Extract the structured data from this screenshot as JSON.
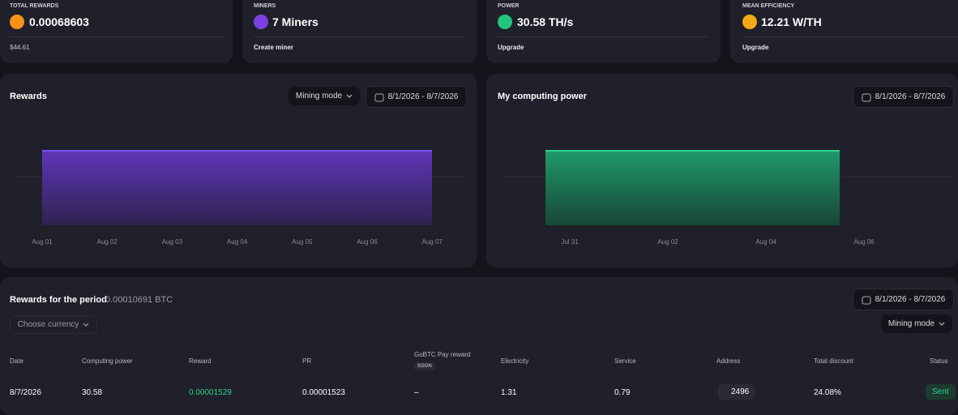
{
  "cards": [
    {
      "label": "TOTAL REWARDS",
      "value": "0.00068603",
      "footer": "$44.61"
    },
    {
      "label": "MINERS",
      "value": "7 Miners",
      "footer": "Create miner"
    },
    {
      "label": "POWER",
      "value": "30.58 TH/s",
      "footer": "Upgrade"
    },
    {
      "label": "MEAN EFFICIENCY",
      "value": "12.21 W/TH",
      "footer": "Upgrade"
    }
  ],
  "rewards_chart": {
    "title": "Rewards",
    "mode": "Mining mode",
    "date_range": "8/1/2026 - 8/7/2026",
    "x_labels": [
      "Aug 01",
      "Aug 02",
      "Aug 03",
      "Aug 04",
      "Aug 05",
      "Aug 06",
      "Aug 07"
    ]
  },
  "power_chart": {
    "title": "My computing power",
    "date_range": "8/1/2026 - 8/7/2026",
    "x_labels": [
      "Jul 31",
      "Aug 02",
      "Aug 04",
      "Aug 06"
    ]
  },
  "table": {
    "title": "Rewards for the period",
    "total": "0.00010691 BTC",
    "date_range": "8/1/2026 - 8/7/2026",
    "currency": "Choose currency",
    "mode": "Mining mode",
    "headers": [
      "Date",
      "Computing power",
      "Reward",
      "PR",
      "GoBTC Pay reward",
      "Electricity",
      "Service",
      "Address",
      "Total discount",
      "Status"
    ],
    "badge": "SOON",
    "rows": [
      [
        "8/7/2026",
        "30.58",
        "0.00001529",
        "0.00001523",
        "–",
        "1.31",
        "0.79",
        "2496",
        "24.08%",
        "Sent"
      ]
    ]
  }
}
